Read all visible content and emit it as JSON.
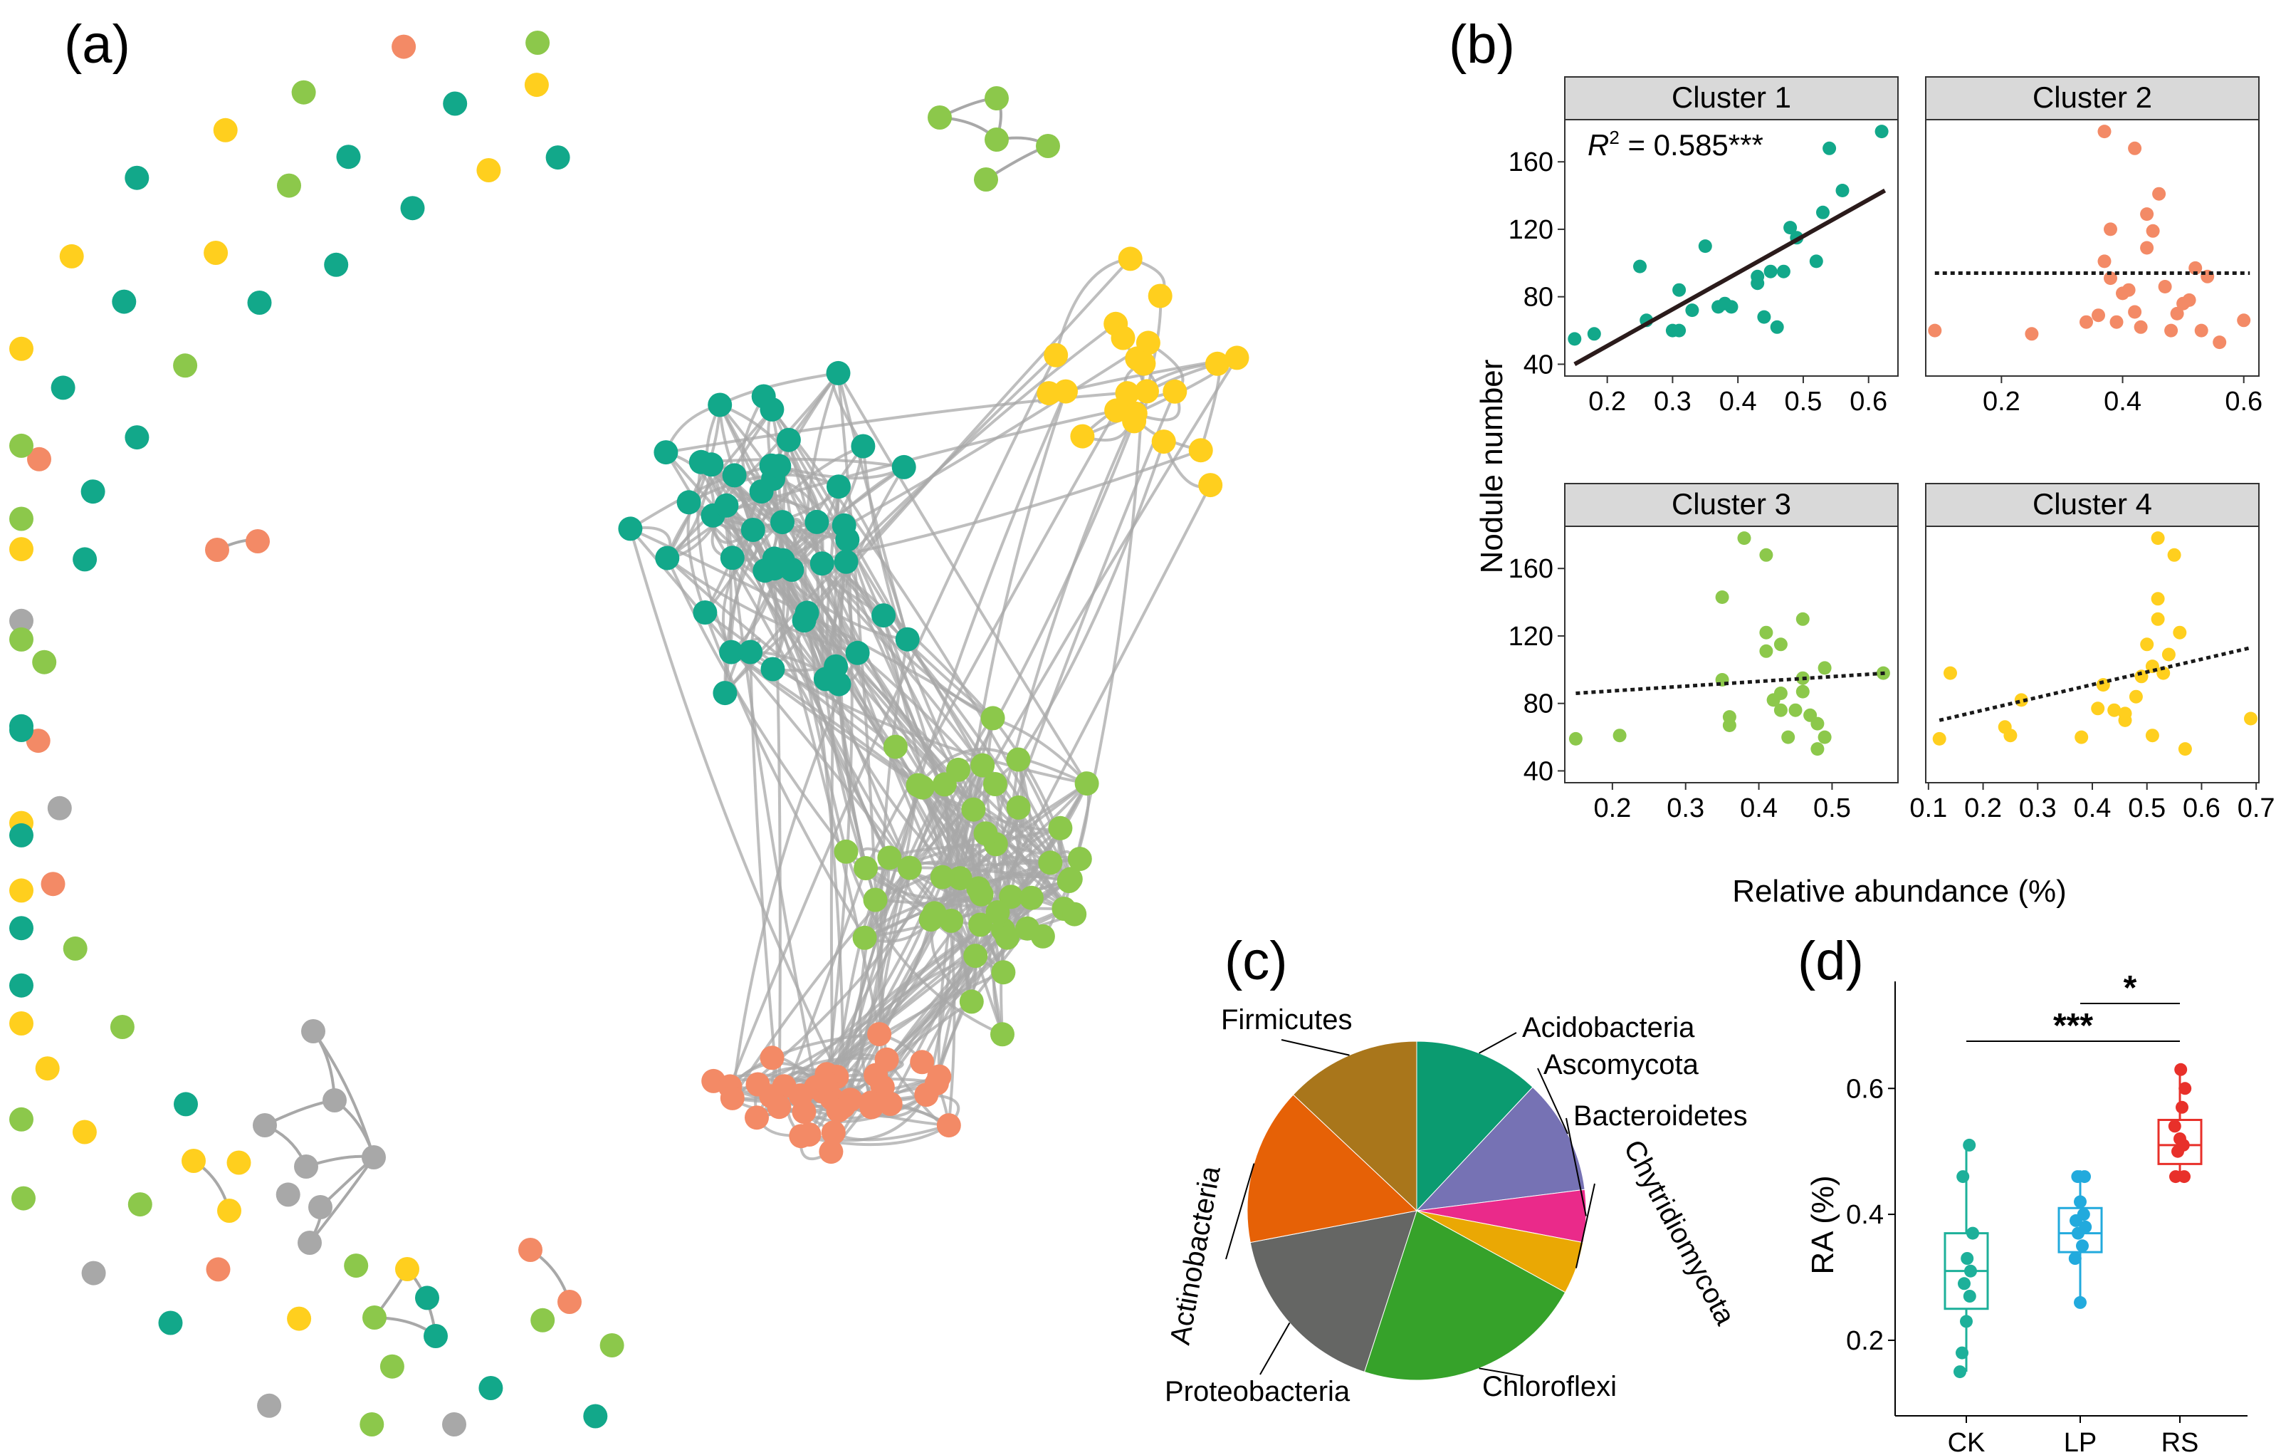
{
  "panel_labels": {
    "a": "(a)",
    "b": "(b)",
    "c": "(c)",
    "d": "(d)"
  },
  "colors": {
    "cluster1": "#12a88a",
    "cluster2": "#f38a66",
    "cluster3": "#8cc84b",
    "cluster4": "#ffcf1e",
    "unclustered": "#a8a8a8",
    "edge": "#a8a8a8"
  },
  "network": {
    "type": "network",
    "seed": 20240518,
    "cluster_counts": {
      "cluster1": 48,
      "cluster2": 38,
      "cluster3": 46,
      "cluster4": 22
    },
    "peripheral": {
      "cluster1": 22,
      "cluster2": 5,
      "cluster3": 18,
      "cluster4": 14,
      "unclustered": 6
    },
    "modules": [
      {
        "colors": [
          "cluster3",
          "cluster3",
          "cluster3",
          "cluster3",
          "cluster3"
        ]
      },
      {
        "colors": [
          "unclustered",
          "unclustered",
          "unclustered",
          "unclustered",
          "unclustered",
          "unclustered",
          "unclustered"
        ]
      },
      {
        "colors": [
          "cluster4",
          "cluster3",
          "cluster1"
        ]
      },
      {
        "colors": [
          "cluster2",
          "cluster2"
        ]
      },
      {
        "colors": [
          "cluster4",
          "cluster4"
        ]
      },
      {
        "colors": [
          "cluster2",
          "cluster2"
        ]
      }
    ]
  },
  "chart_data": [
    {
      "type": "scatter",
      "facets": [
        {
          "title": "Cluster 1",
          "color": "cluster1",
          "xlim": [
            0.135,
            0.645
          ],
          "xticks": [
            0.2,
            0.3,
            0.4,
            0.5,
            0.6
          ],
          "show_xticks": true,
          "annotation": {
            "R": "R",
            "sup": "2",
            "rest": " = 0.585***"
          },
          "fit": {
            "x": [
              0.15,
              0.625
            ],
            "y": [
              40,
              143
            ],
            "style": "solid"
          },
          "points": [
            [
              0.15,
              55
            ],
            [
              0.18,
              58
            ],
            [
              0.25,
              98
            ],
            [
              0.26,
              66
            ],
            [
              0.3,
              60
            ],
            [
              0.31,
              60
            ],
            [
              0.31,
              84
            ],
            [
              0.33,
              72
            ],
            [
              0.35,
              110
            ],
            [
              0.37,
              74
            ],
            [
              0.38,
              76
            ],
            [
              0.39,
              74
            ],
            [
              0.43,
              88
            ],
            [
              0.43,
              92
            ],
            [
              0.44,
              68
            ],
            [
              0.45,
              95
            ],
            [
              0.46,
              62
            ],
            [
              0.47,
              95
            ],
            [
              0.48,
              121
            ],
            [
              0.49,
              115
            ],
            [
              0.52,
              101
            ],
            [
              0.53,
              130
            ],
            [
              0.54,
              168
            ],
            [
              0.56,
              143
            ],
            [
              0.62,
              178
            ]
          ]
        },
        {
          "title": "Cluster 2",
          "color": "cluster2",
          "xlim": [
            0.075,
            0.625
          ],
          "xticks": [
            0.2,
            0.4,
            0.6
          ],
          "show_xticks": true,
          "fit": {
            "x": [
              0.09,
              0.61
            ],
            "y": [
              94,
              94
            ],
            "style": "dotted"
          },
          "points": [
            [
              0.09,
              60
            ],
            [
              0.25,
              58
            ],
            [
              0.34,
              65
            ],
            [
              0.36,
              69
            ],
            [
              0.37,
              178
            ],
            [
              0.37,
              101
            ],
            [
              0.38,
              120
            ],
            [
              0.38,
              91
            ],
            [
              0.39,
              65
            ],
            [
              0.4,
              82
            ],
            [
              0.41,
              84
            ],
            [
              0.42,
              168
            ],
            [
              0.42,
              71
            ],
            [
              0.43,
              62
            ],
            [
              0.44,
              109
            ],
            [
              0.44,
              129
            ],
            [
              0.45,
              119
            ],
            [
              0.46,
              141
            ],
            [
              0.47,
              86
            ],
            [
              0.48,
              60
            ],
            [
              0.49,
              70
            ],
            [
              0.5,
              76
            ],
            [
              0.51,
              78
            ],
            [
              0.52,
              97
            ],
            [
              0.53,
              60
            ],
            [
              0.54,
              92
            ],
            [
              0.56,
              53
            ],
            [
              0.6,
              66
            ]
          ]
        },
        {
          "title": "Cluster 3",
          "color": "cluster3",
          "xlim": [
            0.135,
            0.59
          ],
          "xticks": [
            0.2,
            0.3,
            0.4,
            0.5
          ],
          "show_xticks": true,
          "fit": {
            "x": [
              0.15,
              0.575
            ],
            "y": [
              86,
              98
            ],
            "style": "dotted"
          },
          "points": [
            [
              0.15,
              59
            ],
            [
              0.21,
              61
            ],
            [
              0.35,
              94
            ],
            [
              0.35,
              143
            ],
            [
              0.36,
              72
            ],
            [
              0.36,
              67
            ],
            [
              0.38,
              178
            ],
            [
              0.41,
              122
            ],
            [
              0.41,
              111
            ],
            [
              0.41,
              168
            ],
            [
              0.42,
              82
            ],
            [
              0.43,
              115
            ],
            [
              0.43,
              76
            ],
            [
              0.43,
              86
            ],
            [
              0.44,
              60
            ],
            [
              0.45,
              76
            ],
            [
              0.46,
              87
            ],
            [
              0.46,
              95
            ],
            [
              0.46,
              130
            ],
            [
              0.47,
              73
            ],
            [
              0.48,
              68
            ],
            [
              0.48,
              53
            ],
            [
              0.49,
              60
            ],
            [
              0.49,
              101
            ],
            [
              0.57,
              98
            ]
          ]
        },
        {
          "title": "Cluster 4",
          "color": "cluster4",
          "xlim": [
            0.095,
            0.705
          ],
          "xticks": [
            0.1,
            0.2,
            0.3,
            0.4,
            0.5,
            0.6,
            0.7
          ],
          "show_xticks": true,
          "fit": {
            "x": [
              0.12,
              0.69
            ],
            "y": [
              70,
              113
            ],
            "style": "dotted"
          },
          "points": [
            [
              0.12,
              59
            ],
            [
              0.14,
              98
            ],
            [
              0.24,
              66
            ],
            [
              0.25,
              61
            ],
            [
              0.27,
              82
            ],
            [
              0.38,
              60
            ],
            [
              0.41,
              77
            ],
            [
              0.42,
              91
            ],
            [
              0.44,
              76
            ],
            [
              0.46,
              70
            ],
            [
              0.46,
              74
            ],
            [
              0.48,
              84
            ],
            [
              0.49,
              96
            ],
            [
              0.5,
              115
            ],
            [
              0.51,
              102
            ],
            [
              0.51,
              61
            ],
            [
              0.52,
              130
            ],
            [
              0.52,
              142
            ],
            [
              0.52,
              178
            ],
            [
              0.53,
              98
            ],
            [
              0.54,
              109
            ],
            [
              0.55,
              168
            ],
            [
              0.56,
              122
            ],
            [
              0.57,
              53
            ],
            [
              0.69,
              71
            ]
          ]
        }
      ],
      "ylim": [
        33,
        185
      ],
      "yticks": [
        40,
        80,
        120,
        160
      ],
      "ylabel": "Nodule number",
      "xlabel": "Relative abundance (%)"
    },
    {
      "type": "pie",
      "title": "",
      "slices": [
        {
          "label": "Acidobacteria",
          "value": 12,
          "color": "#0b9b70"
        },
        {
          "label": "Ascomycota",
          "value": 11,
          "color": "#7672b4"
        },
        {
          "label": "Bacteroidetes",
          "value": 5,
          "color": "#ea2a8a"
        },
        {
          "label": "Chytridiomycota",
          "value": 5,
          "color": "#eaa804"
        },
        {
          "label": "Chloroflexi",
          "value": 22,
          "color": "#36a22a"
        },
        {
          "label": "Proteobacteria",
          "value": 17,
          "color": "#656664"
        },
        {
          "label": "Actinobacteria",
          "value": 15,
          "color": "#e66106"
        },
        {
          "label": "Firmicutes",
          "value": 13,
          "color": "#a9761b"
        }
      ]
    },
    {
      "type": "box",
      "categories": [
        "CK",
        "LP",
        "RS"
      ],
      "ylabel": "RA (%)",
      "ylim": [
        0.08,
        0.77
      ],
      "yticks": [
        0.2,
        0.4,
        0.6
      ],
      "groups": [
        {
          "name": "CK",
          "color": "#1db09a",
          "min": 0.15,
          "q1": 0.25,
          "median": 0.31,
          "q3": 0.37,
          "max": 0.51,
          "points": [
            [
              -0.15,
              0.15
            ],
            [
              -0.1,
              0.18
            ],
            [
              0.0,
              0.23
            ],
            [
              0.08,
              0.27
            ],
            [
              -0.05,
              0.29
            ],
            [
              0.1,
              0.31
            ],
            [
              0.02,
              0.33
            ],
            [
              0.15,
              0.37
            ],
            [
              -0.08,
              0.46
            ],
            [
              0.07,
              0.51
            ]
          ]
        },
        {
          "name": "LP",
          "color": "#22aadd",
          "min": 0.26,
          "q1": 0.34,
          "median": 0.37,
          "q3": 0.41,
          "max": 0.47,
          "points": [
            [
              0.0,
              0.26
            ],
            [
              -0.12,
              0.33
            ],
            [
              0.05,
              0.35
            ],
            [
              -0.05,
              0.37
            ],
            [
              0.12,
              0.38
            ],
            [
              -0.1,
              0.39
            ],
            [
              0.08,
              0.4
            ],
            [
              0.0,
              0.42
            ],
            [
              -0.06,
              0.46
            ],
            [
              0.1,
              0.46
            ]
          ]
        },
        {
          "name": "RS",
          "color": "#e8302a",
          "min": 0.46,
          "q1": 0.48,
          "median": 0.51,
          "q3": 0.55,
          "max": 0.63,
          "points": [
            [
              -0.1,
              0.46
            ],
            [
              0.1,
              0.46
            ],
            [
              -0.05,
              0.5
            ],
            [
              0.08,
              0.51
            ],
            [
              0.0,
              0.52
            ],
            [
              -0.12,
              0.54
            ],
            [
              0.05,
              0.57
            ],
            [
              0.12,
              0.6
            ],
            [
              0.02,
              0.63
            ]
          ]
        }
      ],
      "significance": [
        {
          "from": "CK",
          "to": "RS",
          "y": 0.675,
          "label": "***"
        },
        {
          "from": "LP",
          "to": "RS",
          "y": 0.735,
          "label": "*"
        }
      ]
    }
  ]
}
